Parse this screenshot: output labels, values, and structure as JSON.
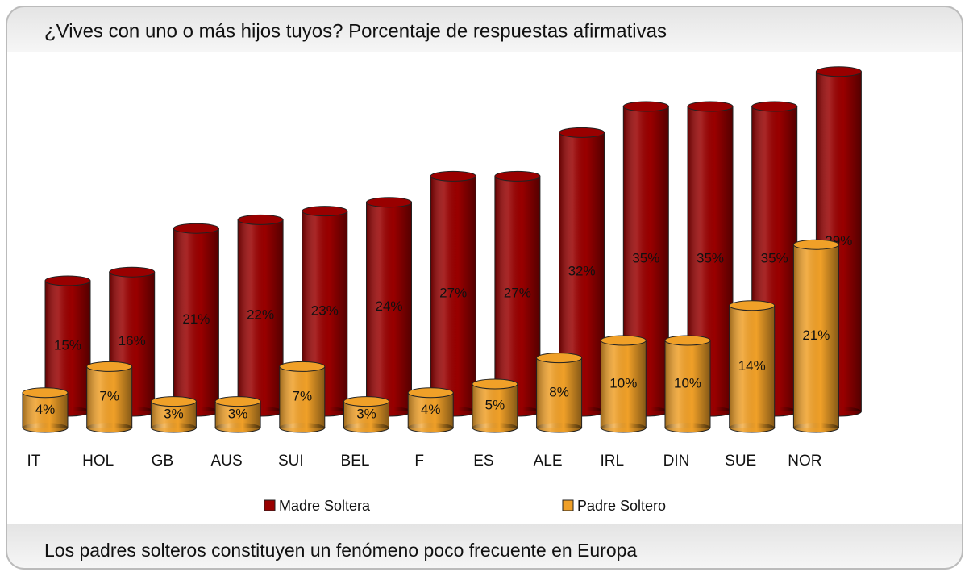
{
  "chart_data": {
    "type": "bar3d",
    "title": "¿Vives con uno o más hijos tuyos? Porcentaje de respuestas afirmativas",
    "footer": "Los padres solteros constituyen un fenómeno poco frecuente en Europa",
    "categories": [
      "IT",
      "HOL",
      "GB",
      "AUS",
      "SUI",
      "BEL",
      "F",
      "ES",
      "ALE",
      "IRL",
      "DIN",
      "SUE",
      "NOR"
    ],
    "series": [
      {
        "name": "Madre Soltera",
        "color": "#990000",
        "values": [
          15,
          16,
          21,
          22,
          23,
          24,
          27,
          27,
          32,
          35,
          35,
          35,
          39
        ],
        "value_labels": [
          "15%",
          "16%",
          "21%",
          "22%",
          "23%",
          "24%",
          "27%",
          "27%",
          "32%",
          "35%",
          "35%",
          "35%",
          "39%"
        ]
      },
      {
        "name": "Padre Soltero",
        "color": "#f0a028",
        "values": [
          4,
          7,
          3,
          3,
          7,
          3,
          4,
          5,
          8,
          10,
          10,
          14,
          21
        ],
        "value_labels": [
          "4%",
          "7%",
          "3%",
          "3%",
          "7%",
          "3%",
          "4%",
          "5%",
          "8%",
          "10%",
          "10%",
          "14%",
          "21%"
        ]
      }
    ]
  }
}
